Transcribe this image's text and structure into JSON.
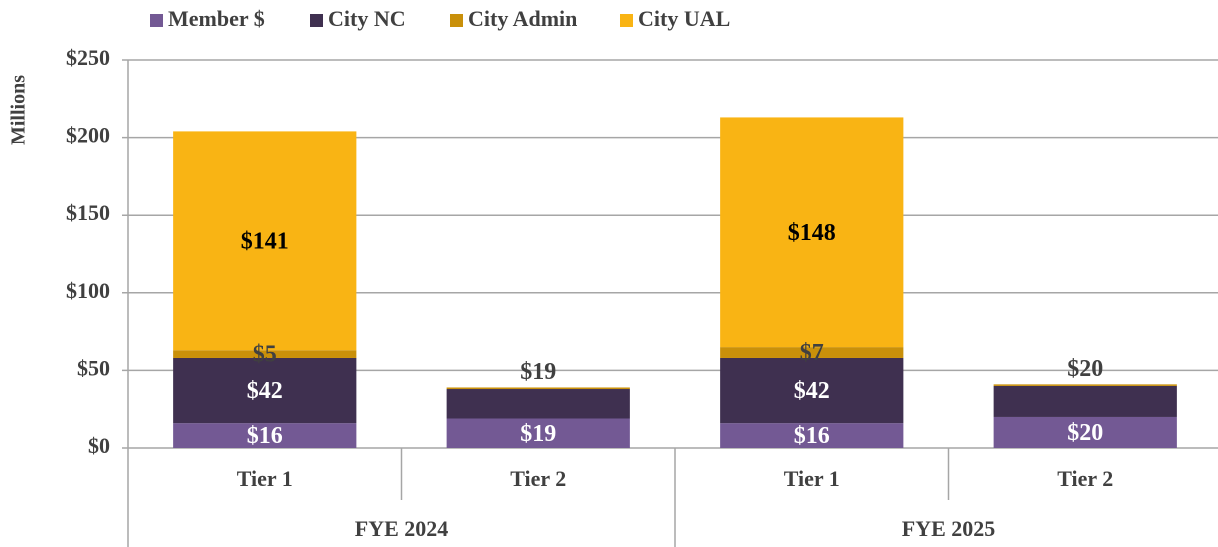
{
  "chart_data": {
    "type": "stacked_bar",
    "y_label": "Millions",
    "categories": [
      "Tier 1",
      "Tier 2",
      "Tier 1",
      "Tier 2"
    ],
    "groups": [
      "FYE 2024",
      "FYE 2025"
    ],
    "ylim": [
      0,
      250
    ],
    "yticks": [
      {
        "value": 0,
        "label": "$0"
      },
      {
        "value": 50,
        "label": "$50"
      },
      {
        "value": 100,
        "label": "$100"
      },
      {
        "value": 150,
        "label": "$150"
      },
      {
        "value": 200,
        "label": "$200"
      },
      {
        "value": 250,
        "label": "$250"
      }
    ],
    "grid": true,
    "legend": "top",
    "series": [
      {
        "name": "Member $",
        "color": "#735994",
        "label_color": "#ffffff",
        "values": [
          16,
          19,
          16,
          20
        ],
        "value_labels": [
          "$16",
          "$19",
          "$16",
          "$20"
        ]
      },
      {
        "name": "City NC",
        "color": "#3f3050",
        "label_color": "#ffffff",
        "values": [
          42,
          19,
          42,
          20
        ],
        "value_labels": [
          "$42",
          "$19",
          "$42",
          "$20"
        ]
      },
      {
        "name": "City Admin",
        "color": "#c9900a",
        "label_color": "#404040",
        "values": [
          5,
          1,
          7,
          1
        ],
        "value_labels": [
          "$5",
          null,
          "$7",
          null
        ]
      },
      {
        "name": "City UAL",
        "color": "#f9b414",
        "label_color": "#000000",
        "values": [
          141,
          0,
          148,
          0
        ],
        "value_labels": [
          "$141",
          null,
          "$148",
          null
        ]
      }
    ]
  }
}
